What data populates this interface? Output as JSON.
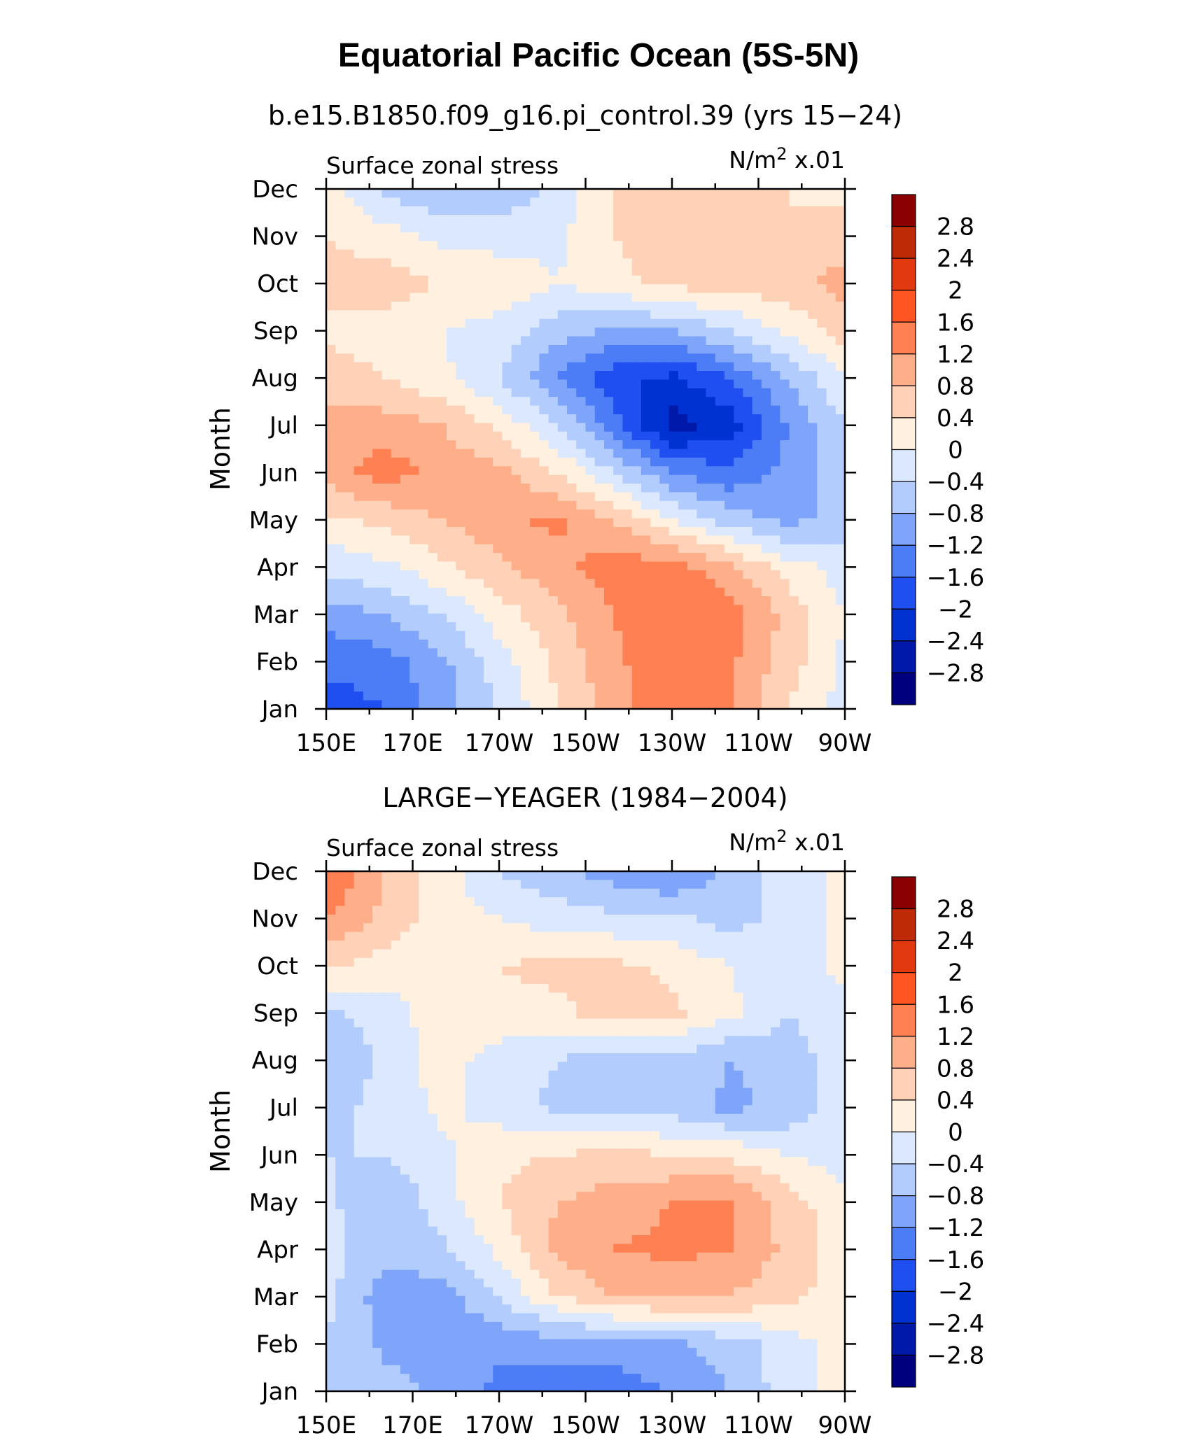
{
  "figure": {
    "title": "Equatorial Pacific Ocean (5S-5N)"
  },
  "chart_data": [
    {
      "type": "heatmap",
      "title": "b.e15.B1850.f09_g16.pi_control.39 (yrs 15−24)",
      "left_label": "Surface zonal stress",
      "units_base": "N/m",
      "units_exp": "2",
      "units_scale": "x.01",
      "ylabel": "Month",
      "x": [
        "150E",
        "170E",
        "170W",
        "150W",
        "130W",
        "110W",
        "90W"
      ],
      "y": [
        "Jan",
        "Feb",
        "Mar",
        "Apr",
        "May",
        "Jun",
        "Jul",
        "Aug",
        "Sep",
        "Oct",
        "Nov",
        "Dec"
      ],
      "z": [
        [
          -1.8,
          -1.6,
          -1.0,
          -0.4,
          0.4,
          1.0,
          1.5,
          1.2,
          0.4,
          -0.2
        ],
        [
          -1.5,
          -1.4,
          -0.9,
          -0.2,
          0.5,
          1.1,
          1.6,
          1.3,
          0.6,
          -0.1
        ],
        [
          -1.0,
          -0.8,
          -0.4,
          0.2,
          0.7,
          1.2,
          1.6,
          1.4,
          0.7,
          0.0
        ],
        [
          -0.3,
          -0.1,
          0.3,
          0.7,
          1.1,
          1.4,
          1.4,
          0.9,
          0.2,
          -0.2
        ],
        [
          0.3,
          0.5,
          0.8,
          1.1,
          1.3,
          0.8,
          0.0,
          -0.6,
          -0.9,
          -0.7
        ],
        [
          1.0,
          1.4,
          1.1,
          0.9,
          0.4,
          -0.4,
          -1.2,
          -1.5,
          -1.1,
          -0.6
        ],
        [
          0.9,
          1.0,
          0.8,
          0.3,
          -0.4,
          -1.4,
          -2.6,
          -2.2,
          -1.2,
          -0.4
        ],
        [
          0.6,
          0.4,
          0.1,
          -0.4,
          -1.2,
          -1.9,
          -2.1,
          -1.6,
          -0.8,
          0.0
        ],
        [
          0.3,
          0.2,
          0.0,
          -0.2,
          -0.6,
          -0.9,
          -0.8,
          -0.4,
          0.1,
          0.6
        ],
        [
          0.5,
          0.6,
          0.4,
          0.3,
          0.0,
          0.3,
          0.5,
          0.6,
          0.6,
          1.0
        ],
        [
          0.4,
          0.2,
          -0.1,
          -0.2,
          -0.1,
          0.4,
          0.6,
          0.7,
          0.4,
          0.6
        ],
        [
          0.2,
          -0.5,
          -0.8,
          -0.7,
          -0.3,
          0.4,
          0.5,
          0.6,
          0.4,
          0.3
        ]
      ],
      "levels": [
        -2.8,
        -2.4,
        -2,
        -1.6,
        -1.2,
        -0.8,
        -0.4,
        0,
        0.4,
        0.8,
        1.2,
        1.6,
        2,
        2.4,
        2.8
      ],
      "colorbar_labels": [
        "2.8",
        "2.4",
        "2",
        "1.6",
        "1.2",
        "0.8",
        "0.4",
        "0",
        "−0.4",
        "−0.8",
        "−1.2",
        "−1.6",
        "−2",
        "−2.4",
        "−2.8"
      ]
    },
    {
      "type": "heatmap",
      "title": "LARGE−YEAGER (1984−2004)",
      "left_label": "Surface zonal stress",
      "units_base": "N/m",
      "units_exp": "2",
      "units_scale": "x.01",
      "ylabel": "Month",
      "x": [
        "150E",
        "170E",
        "170W",
        "150W",
        "130W",
        "110W",
        "90W"
      ],
      "y": [
        "Jan",
        "Feb",
        "Mar",
        "Apr",
        "May",
        "Jun",
        "Jul",
        "Aug",
        "Sep",
        "Oct",
        "Nov",
        "Dec"
      ],
      "z": [
        [
          -0.5,
          -0.6,
          -0.9,
          -1.3,
          -1.5,
          -1.4,
          -1.2,
          -0.8,
          -0.2,
          0.2
        ],
        [
          -0.4,
          -0.9,
          -1.0,
          -1.1,
          -1.0,
          -1.0,
          -0.9,
          -0.6,
          -0.2,
          0.2
        ],
        [
          -0.3,
          -1.0,
          -1.0,
          -0.4,
          0.4,
          0.8,
          0.9,
          0.8,
          0.5,
          0.2
        ],
        [
          -0.2,
          -0.7,
          -0.5,
          0.1,
          0.9,
          1.2,
          1.3,
          1.2,
          0.7,
          0.2
        ],
        [
          -0.3,
          -0.8,
          -0.2,
          0.4,
          0.8,
          1.0,
          1.2,
          1.3,
          0.6,
          0.1
        ],
        [
          -0.4,
          -0.4,
          -0.1,
          0.3,
          0.4,
          0.5,
          0.4,
          0.3,
          0.0,
          -0.2
        ],
        [
          -0.5,
          -0.3,
          0.1,
          -0.2,
          -0.5,
          -0.6,
          -0.6,
          -0.9,
          -0.7,
          -0.2
        ],
        [
          -0.8,
          -0.3,
          0.2,
          -0.2,
          -0.4,
          -0.6,
          -0.5,
          -0.8,
          -0.6,
          -0.2
        ],
        [
          -0.5,
          -0.2,
          0.2,
          0.3,
          0.3,
          0.6,
          0.5,
          0.1,
          -0.4,
          -0.1
        ],
        [
          0.5,
          0.2,
          0.1,
          0.4,
          0.5,
          0.5,
          0.3,
          0.0,
          -0.2,
          0.1
        ],
        [
          1.2,
          0.7,
          0.2,
          0.0,
          -0.2,
          -0.3,
          -0.3,
          -0.6,
          -0.2,
          0.1
        ],
        [
          1.7,
          0.8,
          0.2,
          -0.4,
          -0.7,
          -1.0,
          -1.3,
          -0.6,
          -0.2,
          0.1
        ]
      ],
      "levels": [
        -2.8,
        -2.4,
        -2,
        -1.6,
        -1.2,
        -0.8,
        -0.4,
        0,
        0.4,
        0.8,
        1.2,
        1.6,
        2,
        2.4,
        2.8
      ],
      "colorbar_labels": [
        "2.8",
        "2.4",
        "2",
        "1.6",
        "1.2",
        "0.8",
        "0.4",
        "0",
        "−0.4",
        "−0.8",
        "−1.2",
        "−1.6",
        "−2",
        "−2.4",
        "−2.8"
      ]
    }
  ],
  "colors": [
    "#00007f",
    "#0019a8",
    "#0032d2",
    "#1f4ff0",
    "#4c7df7",
    "#7fa5fa",
    "#b2ccfd",
    "#dbe8fe",
    "#fff0e0",
    "#ffd2b8",
    "#ffae8a",
    "#ff8052",
    "#ff5522",
    "#e23a0e",
    "#bf2a06",
    "#8b0000"
  ]
}
